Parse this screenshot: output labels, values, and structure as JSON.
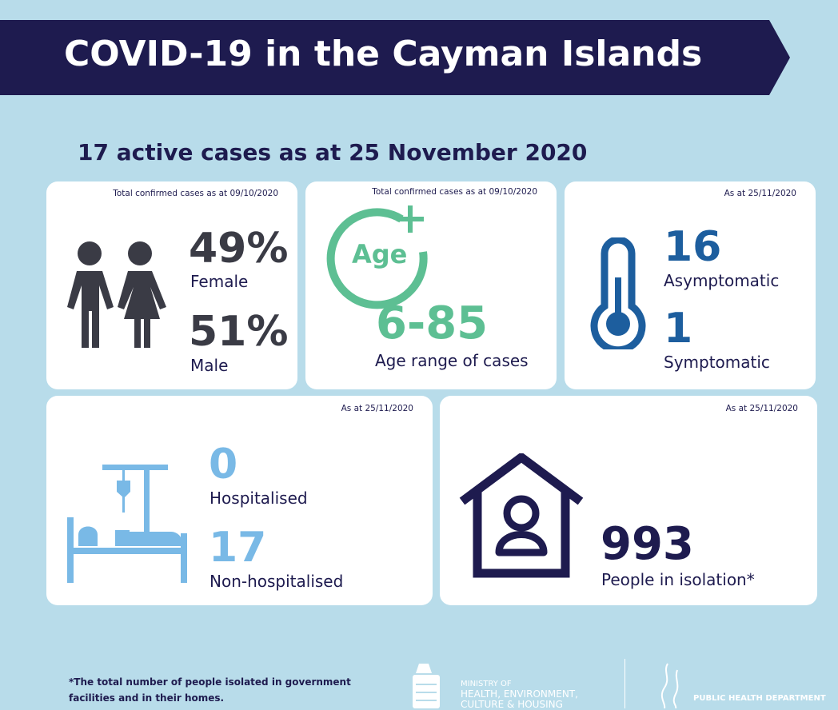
{
  "header": {
    "title": "COVID-19 in the Cayman Islands",
    "subtitle": "17 active cases as at 25 November 2020"
  },
  "colors": {
    "background": "#b8dcea",
    "navy": "#1e1b4f",
    "gray": "#3a3b45",
    "green": "#5dbf93",
    "blue": "#1d5e9e",
    "light_blue": "#79b9e6"
  },
  "gender": {
    "note": "Total confirmed cases as at 09/10/2020",
    "female_value": "49%",
    "female_label": "Female",
    "male_value": "51%",
    "male_label": "Male",
    "icon": "people-icon"
  },
  "age": {
    "note": "Total confirmed cases as at 09/10/2020",
    "icon_text": "Age",
    "value": "6-85",
    "label": "Age range of cases"
  },
  "symptoms": {
    "note": "As at 25/11/2020",
    "asym_value": "16",
    "asym_label": "Asymptomatic",
    "sym_value": "1",
    "sym_label": "Symptomatic",
    "icon": "thermometer-icon"
  },
  "hospital": {
    "note": "As at 25/11/2020",
    "hosp_value": "0",
    "hosp_label": "Hospitalised",
    "non_value": "17",
    "non_label": "Non-hospitalised",
    "icon": "hospital-bed-icon"
  },
  "isolation": {
    "note": "As at 25/11/2020",
    "value": "993",
    "label": "People in isolation*",
    "icon": "house-person-icon"
  },
  "footer": {
    "footnote": "*The total number of people isolated in government facilities and in their homes.",
    "ministry": [
      "MINISTRY OF",
      "HEALTH, ENVIRONMENT,",
      "CULTURE & HOUSING"
    ],
    "department": "PUBLIC HEALTH DEPARTMENT"
  }
}
